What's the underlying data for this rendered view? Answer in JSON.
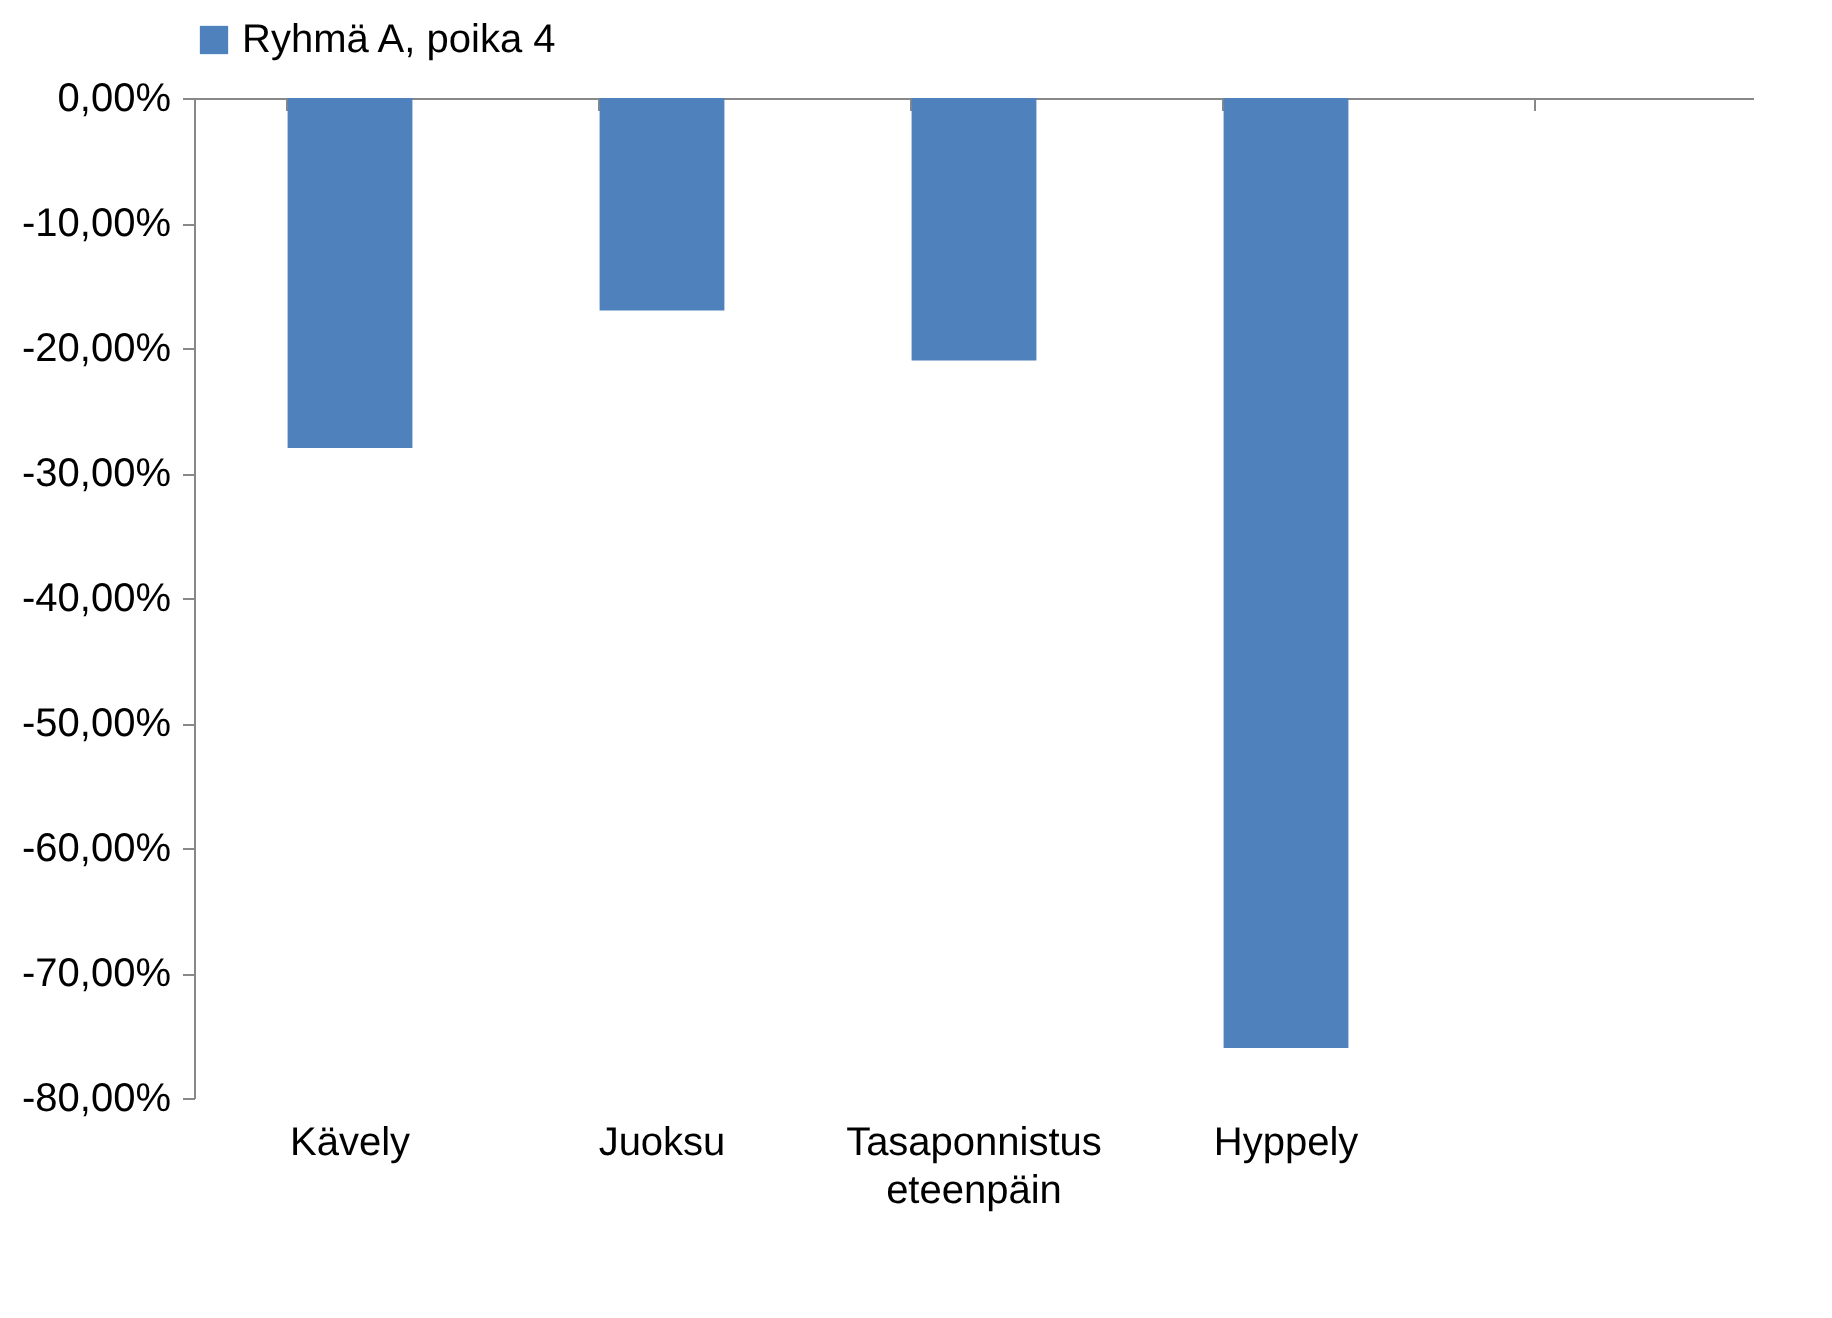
{
  "chart_data": {
    "type": "bar",
    "categories": [
      "Kävely",
      "Juoksu",
      "Tasaponnistus eteenpäin",
      "Hyppely",
      null
    ],
    "series": [
      {
        "name": "Ryhmä A, poika 4",
        "color": "#4f81bd",
        "values": [
          -28,
          -17,
          -21,
          -76,
          null
        ]
      }
    ],
    "ylim": [
      -80,
      0
    ],
    "yticks": [
      {
        "value": -80,
        "label": "-80,00%"
      },
      {
        "value": -70,
        "label": "-70,00%"
      },
      {
        "value": -60,
        "label": "-60,00%"
      },
      {
        "value": -50,
        "label": "-50,00%"
      },
      {
        "value": -40,
        "label": "-40,00%"
      },
      {
        "value": -30,
        "label": "-30,00%"
      },
      {
        "value": -20,
        "label": "-20,00%"
      },
      {
        "value": -10,
        "label": "-10,00%"
      },
      {
        "value": 0,
        "label": "0,00%"
      }
    ],
    "legend": "top",
    "grid": false
  }
}
